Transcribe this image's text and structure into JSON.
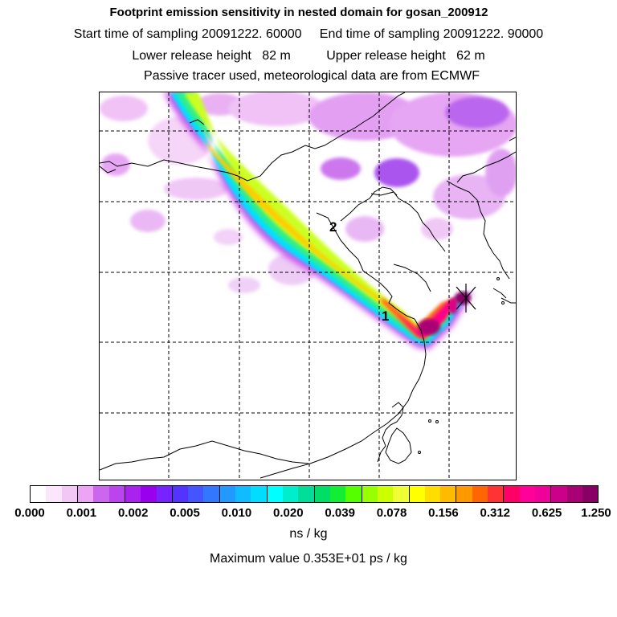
{
  "titles": {
    "line1": "Footprint emission sensitivity in nested domain for gosan_200912",
    "line2": "Start time of sampling 20091222. 60000     End time of sampling 20091222. 90000",
    "line3": "Lower release height   82 m          Upper release height   62 m",
    "line4": "Passive tracer used, meteorological data are from ECMWF"
  },
  "map": {
    "markers": [
      {
        "label": "1"
      },
      {
        "label": "2"
      }
    ],
    "release_site_icon": "x-star-icon"
  },
  "colorbar": {
    "colors": [
      "#ffffff",
      "#fbe6fb",
      "#f2c7f6",
      "#eda4f5",
      "#cc66ee",
      "#bb44ee",
      "#aa22ee",
      "#9900ee",
      "#7722ff",
      "#5533ff",
      "#4455ff",
      "#3377ff",
      "#2299ff",
      "#11bbff",
      "#00ddff",
      "#00ffff",
      "#00eecc",
      "#00dd99",
      "#00dd66",
      "#11ee33",
      "#55ff00",
      "#99ff00",
      "#ccff00",
      "#eeff33",
      "#ffff00",
      "#ffdd00",
      "#ffbb00",
      "#ff9900",
      "#ff6600",
      "#ff3333",
      "#ff0066",
      "#ff0099",
      "#ee0099",
      "#cc0088",
      "#aa0077",
      "#880066"
    ],
    "tick_labels": [
      "0.000",
      "0.001",
      "0.002",
      "0.005",
      "0.010",
      "0.020",
      "0.039",
      "0.078",
      "0.156",
      "0.312",
      "0.625",
      "1.250"
    ],
    "unit": "ns / kg"
  },
  "maximum_value": "Maximum value  0.353E+01 ps / kg"
}
